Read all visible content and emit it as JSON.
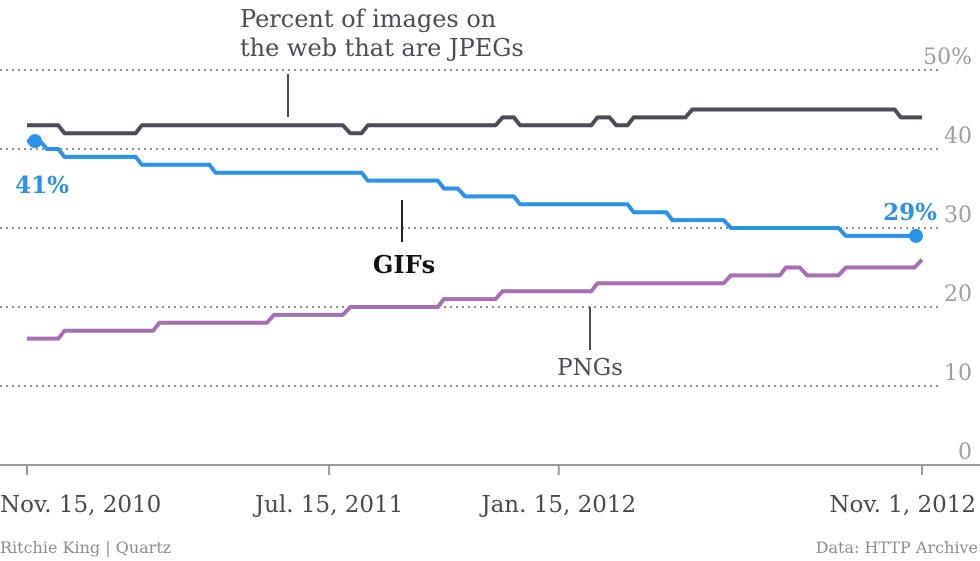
{
  "chart_data": {
    "type": "line",
    "x": [
      "2010-11-15",
      "2010-12-01",
      "2010-12-15",
      "2011-01-01",
      "2011-01-15",
      "2011-02-01",
      "2011-02-15",
      "2011-03-01",
      "2011-03-15",
      "2011-04-01",
      "2011-04-15",
      "2011-05-01",
      "2011-05-15",
      "2011-06-01",
      "2011-06-15",
      "2011-07-01",
      "2011-07-15",
      "2011-08-01",
      "2011-08-15",
      "2011-09-01",
      "2011-09-15",
      "2011-10-01",
      "2011-10-15",
      "2011-11-01",
      "2011-11-15",
      "2011-12-01",
      "2011-12-15",
      "2012-01-01",
      "2012-01-15",
      "2012-02-01",
      "2012-02-15",
      "2012-03-01",
      "2012-03-15",
      "2012-04-01",
      "2012-04-15",
      "2012-05-01",
      "2012-05-15",
      "2012-06-01",
      "2012-06-15",
      "2012-07-01",
      "2012-07-15",
      "2012-08-01",
      "2012-08-15",
      "2012-09-01",
      "2012-09-15",
      "2012-10-01",
      "2012-10-15",
      "2012-11-01"
    ],
    "x_ticks": [
      {
        "x": "2010-11-15",
        "label": "Nov. 15, 2010"
      },
      {
        "x": "2011-07-15",
        "label": "Jul. 15, 2011"
      },
      {
        "x": "2012-01-15",
        "label": "Jan. 15, 2012"
      },
      {
        "x": "2012-11-01",
        "label": "Nov. 1, 2012"
      }
    ],
    "y_ticks": [
      {
        "value": 50,
        "label": "50%"
      },
      {
        "value": 40,
        "label": "40"
      },
      {
        "value": 30,
        "label": "30"
      },
      {
        "value": 20,
        "label": "20"
      },
      {
        "value": 10,
        "label": "10"
      },
      {
        "value": 0,
        "label": "0"
      }
    ],
    "ylim": [
      0,
      50
    ],
    "grid": true,
    "series": [
      {
        "name": "JPEGs",
        "color": "#4a4d56",
        "values": [
          43,
          43,
          42,
          42,
          42,
          42,
          43,
          43,
          43,
          43,
          43,
          43,
          43,
          43,
          43,
          43,
          43,
          42,
          43,
          43,
          43,
          43,
          43,
          43,
          43,
          44,
          43,
          43,
          43,
          43,
          44,
          43,
          44,
          44,
          44,
          45,
          45,
          45,
          45,
          45,
          45,
          45,
          45,
          45,
          45,
          45,
          44,
          44
        ]
      },
      {
        "name": "GIFs",
        "color": "#2893e8",
        "values": [
          41,
          40,
          39,
          39,
          39,
          39,
          38,
          38,
          38,
          38,
          37,
          37,
          37,
          37,
          37,
          37,
          37,
          37,
          36,
          36,
          36,
          36,
          35,
          34,
          34,
          34,
          33,
          33,
          33,
          33,
          33,
          33,
          32,
          32,
          31,
          31,
          31,
          30,
          30,
          30,
          30,
          30,
          30,
          29,
          29,
          29,
          29,
          29
        ]
      },
      {
        "name": "PNGs",
        "color": "#a56fb4",
        "values": [
          16,
          16,
          17,
          17,
          17,
          17,
          17,
          18,
          18,
          18,
          18,
          18,
          18,
          19,
          19,
          19,
          19,
          20,
          20,
          20,
          20,
          20,
          21,
          21,
          21,
          22,
          22,
          22,
          22,
          22,
          23,
          23,
          23,
          23,
          23,
          23,
          23,
          24,
          24,
          24,
          25,
          24,
          24,
          25,
          25,
          25,
          25,
          26
        ]
      }
    ],
    "labels": {
      "jpegs_line1": "Percent of images on",
      "jpegs_line2": "the web that are JPEGs",
      "gifs": "GIFs",
      "pngs": "PNGs",
      "gifs_start": "41%",
      "gifs_end": "29%"
    }
  },
  "footer": {
    "credit": "Ritchie King | Quartz",
    "source": "Data: HTTP Archive"
  }
}
